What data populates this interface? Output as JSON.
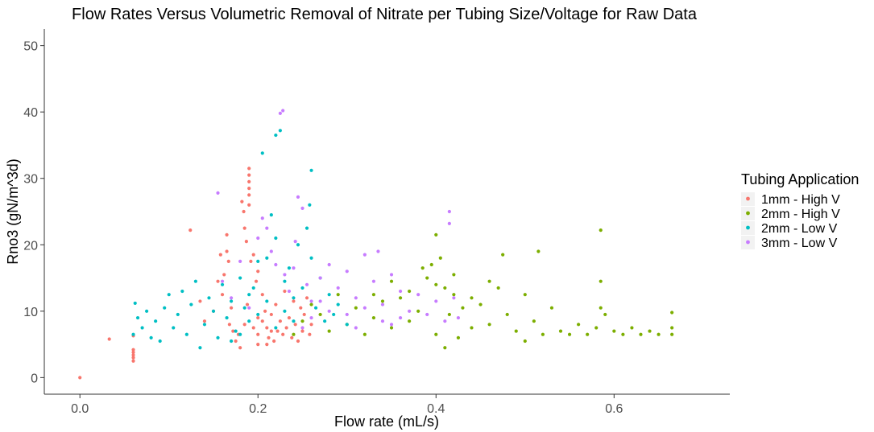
{
  "chart_data": {
    "type": "scatter",
    "title": "Flow Rates Versus Volumetric Removal of Nitrate per Tubing Size/Voltage for Raw Data",
    "xlabel": "Flow rate (mL/s)",
    "ylabel": "Rno3 (gN/m^3d)",
    "xlim": [
      -0.04,
      0.73
    ],
    "ylim": [
      -2.5,
      52.5
    ],
    "xticks": [
      "0.0",
      "0.2",
      "0.4",
      "0.6"
    ],
    "yticks": [
      "0",
      "10",
      "20",
      "30",
      "40",
      "50"
    ],
    "grid": false,
    "legend": {
      "title": "Tubing Application",
      "placement": "right",
      "entries": [
        "1mm - High V",
        "2mm - High V",
        "2mm - Low V",
        "3mm - Low V"
      ]
    },
    "series": [
      {
        "name": "1mm - High V",
        "color": "#F8766D",
        "points": [
          [
            0.0,
            0.0
          ],
          [
            0.033,
            5.8
          ],
          [
            0.06,
            2.5
          ],
          [
            0.06,
            3.0
          ],
          [
            0.06,
            3.4
          ],
          [
            0.06,
            3.8
          ],
          [
            0.06,
            4.2
          ],
          [
            0.06,
            6.3
          ],
          [
            0.124,
            22.2
          ],
          [
            0.135,
            11.5
          ],
          [
            0.14,
            8.5
          ],
          [
            0.15,
            10.0
          ],
          [
            0.155,
            14.5
          ],
          [
            0.158,
            18.5
          ],
          [
            0.16,
            12.5
          ],
          [
            0.162,
            15.5
          ],
          [
            0.165,
            19.0
          ],
          [
            0.165,
            21.5
          ],
          [
            0.167,
            17.5
          ],
          [
            0.168,
            8.0
          ],
          [
            0.17,
            10.5
          ],
          [
            0.172,
            7.0
          ],
          [
            0.175,
            5.5
          ],
          [
            0.178,
            6.5
          ],
          [
            0.18,
            4.5
          ],
          [
            0.182,
            26.5
          ],
          [
            0.184,
            25.0
          ],
          [
            0.185,
            22.5
          ],
          [
            0.187,
            20.5
          ],
          [
            0.19,
            31.5
          ],
          [
            0.19,
            30.5
          ],
          [
            0.19,
            29.5
          ],
          [
            0.19,
            28.5
          ],
          [
            0.19,
            27.5
          ],
          [
            0.19,
            26.0
          ],
          [
            0.192,
            17.5
          ],
          [
            0.195,
            18.5
          ],
          [
            0.198,
            14.5
          ],
          [
            0.2,
            16.0
          ],
          [
            0.2,
            9.0
          ],
          [
            0.2,
            5.0
          ],
          [
            0.205,
            12.5
          ],
          [
            0.208,
            10.0
          ],
          [
            0.21,
            7.5
          ],
          [
            0.212,
            6.0
          ],
          [
            0.215,
            9.5
          ],
          [
            0.218,
            5.5
          ],
          [
            0.22,
            11.0
          ],
          [
            0.222,
            7.0
          ],
          [
            0.225,
            8.5
          ],
          [
            0.228,
            6.5
          ],
          [
            0.23,
            13.0
          ],
          [
            0.232,
            7.5
          ],
          [
            0.235,
            9.0
          ],
          [
            0.238,
            6.0
          ],
          [
            0.24,
            11.5
          ],
          [
            0.242,
            8.0
          ],
          [
            0.245,
            5.5
          ],
          [
            0.248,
            10.5
          ],
          [
            0.25,
            7.0
          ],
          [
            0.252,
            9.5
          ],
          [
            0.255,
            12.0
          ],
          [
            0.258,
            6.5
          ],
          [
            0.26,
            8.0
          ],
          [
            0.185,
            8.0
          ],
          [
            0.188,
            11.0
          ],
          [
            0.195,
            7.5
          ],
          [
            0.2,
            6.5
          ],
          [
            0.205,
            8.5
          ],
          [
            0.21,
            5.0
          ],
          [
            0.215,
            7.0
          ]
        ]
      },
      {
        "name": "2mm - High V",
        "color": "#7CAE00",
        "points": [
          [
            0.24,
            6.5
          ],
          [
            0.25,
            8.5
          ],
          [
            0.26,
            11.0
          ],
          [
            0.27,
            9.5
          ],
          [
            0.28,
            7.0
          ],
          [
            0.29,
            12.5
          ],
          [
            0.3,
            8.0
          ],
          [
            0.31,
            10.5
          ],
          [
            0.32,
            6.5
          ],
          [
            0.33,
            9.0
          ],
          [
            0.34,
            11.5
          ],
          [
            0.35,
            7.5
          ],
          [
            0.36,
            12.0
          ],
          [
            0.37,
            8.5
          ],
          [
            0.38,
            10.0
          ],
          [
            0.39,
            15.0
          ],
          [
            0.395,
            17.0
          ],
          [
            0.4,
            21.5
          ],
          [
            0.4,
            6.5
          ],
          [
            0.405,
            18.0
          ],
          [
            0.41,
            13.5
          ],
          [
            0.41,
            4.5
          ],
          [
            0.415,
            9.5
          ],
          [
            0.42,
            12.5
          ],
          [
            0.425,
            6.0
          ],
          [
            0.43,
            10.5
          ],
          [
            0.44,
            7.5
          ],
          [
            0.45,
            11.0
          ],
          [
            0.46,
            8.0
          ],
          [
            0.47,
            13.5
          ],
          [
            0.475,
            18.5
          ],
          [
            0.48,
            9.5
          ],
          [
            0.49,
            7.0
          ],
          [
            0.5,
            12.5
          ],
          [
            0.5,
            5.5
          ],
          [
            0.51,
            8.5
          ],
          [
            0.515,
            19.0
          ],
          [
            0.52,
            6.5
          ],
          [
            0.53,
            10.5
          ],
          [
            0.54,
            7.0
          ],
          [
            0.55,
            6.5
          ],
          [
            0.56,
            8.0
          ],
          [
            0.57,
            6.5
          ],
          [
            0.58,
            7.5
          ],
          [
            0.585,
            22.2
          ],
          [
            0.585,
            14.5
          ],
          [
            0.585,
            10.5
          ],
          [
            0.59,
            9.5
          ],
          [
            0.6,
            7.0
          ],
          [
            0.61,
            6.5
          ],
          [
            0.62,
            7.5
          ],
          [
            0.63,
            6.5
          ],
          [
            0.64,
            7.0
          ],
          [
            0.65,
            6.5
          ],
          [
            0.665,
            9.8
          ],
          [
            0.665,
            7.5
          ],
          [
            0.665,
            6.5
          ],
          [
            0.33,
            12.5
          ],
          [
            0.35,
            14.5
          ],
          [
            0.37,
            13.0
          ],
          [
            0.385,
            16.5
          ],
          [
            0.4,
            14.0
          ],
          [
            0.42,
            15.5
          ],
          [
            0.44,
            12.0
          ],
          [
            0.46,
            14.5
          ]
        ]
      },
      {
        "name": "2mm - Low V",
        "color": "#00BFC4",
        "points": [
          [
            0.06,
            6.5
          ],
          [
            0.062,
            11.2
          ],
          [
            0.065,
            9.0
          ],
          [
            0.07,
            7.5
          ],
          [
            0.075,
            10.0
          ],
          [
            0.08,
            6.0
          ],
          [
            0.085,
            8.5
          ],
          [
            0.09,
            5.5
          ],
          [
            0.095,
            10.5
          ],
          [
            0.1,
            12.5
          ],
          [
            0.105,
            7.5
          ],
          [
            0.11,
            9.5
          ],
          [
            0.115,
            13.0
          ],
          [
            0.12,
            6.5
          ],
          [
            0.125,
            11.0
          ],
          [
            0.13,
            14.5
          ],
          [
            0.135,
            4.5
          ],
          [
            0.14,
            8.0
          ],
          [
            0.145,
            12.0
          ],
          [
            0.15,
            10.0
          ],
          [
            0.155,
            6.0
          ],
          [
            0.16,
            14.0
          ],
          [
            0.165,
            9.0
          ],
          [
            0.17,
            11.5
          ],
          [
            0.175,
            7.0
          ],
          [
            0.18,
            15.0
          ],
          [
            0.185,
            10.5
          ],
          [
            0.19,
            8.5
          ],
          [
            0.195,
            13.5
          ],
          [
            0.2,
            17.5
          ],
          [
            0.205,
            33.8
          ],
          [
            0.21,
            18.0
          ],
          [
            0.215,
            24.5
          ],
          [
            0.22,
            36.5
          ],
          [
            0.22,
            21.0
          ],
          [
            0.225,
            37.2
          ],
          [
            0.23,
            14.5
          ],
          [
            0.235,
            16.5
          ],
          [
            0.24,
            12.0
          ],
          [
            0.245,
            20.0
          ],
          [
            0.25,
            13.5
          ],
          [
            0.255,
            22.5
          ],
          [
            0.258,
            26.0
          ],
          [
            0.26,
            31.2
          ],
          [
            0.26,
            18.0
          ],
          [
            0.265,
            10.5
          ],
          [
            0.27,
            15.0
          ],
          [
            0.275,
            8.5
          ],
          [
            0.28,
            12.5
          ],
          [
            0.285,
            9.5
          ],
          [
            0.29,
            11.0
          ],
          [
            0.3,
            8.0
          ],
          [
            0.17,
            5.5
          ],
          [
            0.18,
            6.5
          ],
          [
            0.19,
            12.5
          ],
          [
            0.2,
            9.5
          ],
          [
            0.21,
            11.5
          ],
          [
            0.22,
            7.5
          ],
          [
            0.23,
            10.0
          ],
          [
            0.24,
            8.5
          ]
        ]
      },
      {
        "name": "3mm - Low V",
        "color": "#C77CFF",
        "points": [
          [
            0.155,
            27.8
          ],
          [
            0.16,
            14.5
          ],
          [
            0.17,
            12.0
          ],
          [
            0.18,
            17.5
          ],
          [
            0.19,
            10.5
          ],
          [
            0.2,
            21.0
          ],
          [
            0.205,
            24.0
          ],
          [
            0.21,
            22.5
          ],
          [
            0.215,
            19.0
          ],
          [
            0.22,
            17.0
          ],
          [
            0.225,
            39.8
          ],
          [
            0.228,
            40.2
          ],
          [
            0.23,
            15.5
          ],
          [
            0.235,
            13.0
          ],
          [
            0.24,
            16.5
          ],
          [
            0.242,
            20.5
          ],
          [
            0.245,
            27.2
          ],
          [
            0.25,
            25.5
          ],
          [
            0.255,
            14.0
          ],
          [
            0.26,
            11.5
          ],
          [
            0.27,
            15.0
          ],
          [
            0.28,
            17.0
          ],
          [
            0.29,
            13.5
          ],
          [
            0.3,
            16.0
          ],
          [
            0.31,
            12.0
          ],
          [
            0.32,
            18.5
          ],
          [
            0.33,
            14.5
          ],
          [
            0.335,
            19.0
          ],
          [
            0.34,
            11.0
          ],
          [
            0.35,
            15.5
          ],
          [
            0.36,
            13.0
          ],
          [
            0.37,
            10.0
          ],
          [
            0.38,
            12.5
          ],
          [
            0.39,
            9.5
          ],
          [
            0.4,
            11.5
          ],
          [
            0.41,
            8.5
          ],
          [
            0.415,
            25.0
          ],
          [
            0.415,
            23.2
          ],
          [
            0.42,
            12.0
          ],
          [
            0.425,
            9.0
          ],
          [
            0.3,
            9.5
          ],
          [
            0.32,
            10.5
          ],
          [
            0.34,
            8.5
          ],
          [
            0.36,
            9.0
          ],
          [
            0.28,
            10.0
          ],
          [
            0.26,
            9.0
          ],
          [
            0.25,
            7.5
          ],
          [
            0.27,
            11.5
          ],
          [
            0.31,
            7.5
          ],
          [
            0.35,
            8.0
          ]
        ]
      }
    ]
  }
}
